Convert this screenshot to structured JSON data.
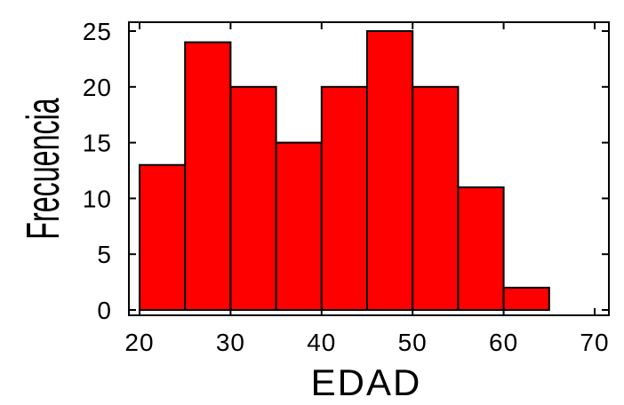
{
  "chart_data": {
    "type": "bar",
    "subtype": "histogram",
    "bin_edges": [
      20,
      25,
      30,
      35,
      40,
      45,
      50,
      55,
      60,
      65
    ],
    "values": [
      13,
      24,
      20,
      15,
      20,
      25,
      20,
      11,
      2
    ],
    "xlabel": "EDAD",
    "ylabel": "Frecuencia",
    "xlim": [
      20,
      70
    ],
    "ylim": [
      0,
      25
    ],
    "x_ticks": [
      20,
      30,
      40,
      50,
      60,
      70
    ],
    "y_ticks": [
      0,
      5,
      10,
      15,
      20,
      25
    ],
    "x_tick_labels": [
      "20",
      "30",
      "40",
      "50",
      "60",
      "70"
    ],
    "y_tick_labels": [
      "0",
      "5",
      "10",
      "15",
      "20",
      "25"
    ],
    "grid": false,
    "legend": "none",
    "bar_color": "#ff0000",
    "edge_color": "#000000"
  }
}
